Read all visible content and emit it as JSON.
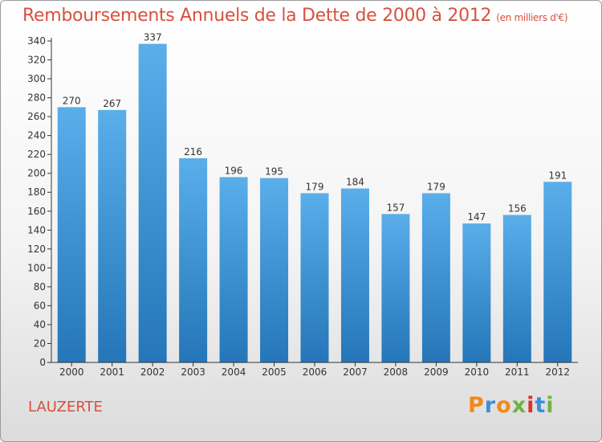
{
  "title": "Remboursements Annuels de la Dette de 2000 à 2012",
  "unit": "(en milliers d'€)",
  "commune": "LAUZERTE",
  "brand": [
    "P",
    "r",
    "o",
    "x",
    "i",
    "t",
    "i"
  ],
  "colors": {
    "title": "#d9503f",
    "bar_top": "#5aaeea",
    "bar_bottom": "#2476b8",
    "axis": "#333333"
  },
  "chart_data": {
    "type": "bar",
    "categories": [
      "2000",
      "2001",
      "2002",
      "2003",
      "2004",
      "2005",
      "2006",
      "2007",
      "2008",
      "2009",
      "2010",
      "2011",
      "2012"
    ],
    "values": [
      270,
      267,
      337,
      216,
      196,
      195,
      179,
      184,
      157,
      179,
      147,
      156,
      191
    ],
    "ylim": [
      0,
      340
    ],
    "yticks": [
      0,
      20,
      40,
      60,
      80,
      100,
      120,
      140,
      160,
      180,
      200,
      220,
      240,
      260,
      280,
      300,
      320,
      340
    ],
    "grid": false,
    "legend": "none"
  }
}
